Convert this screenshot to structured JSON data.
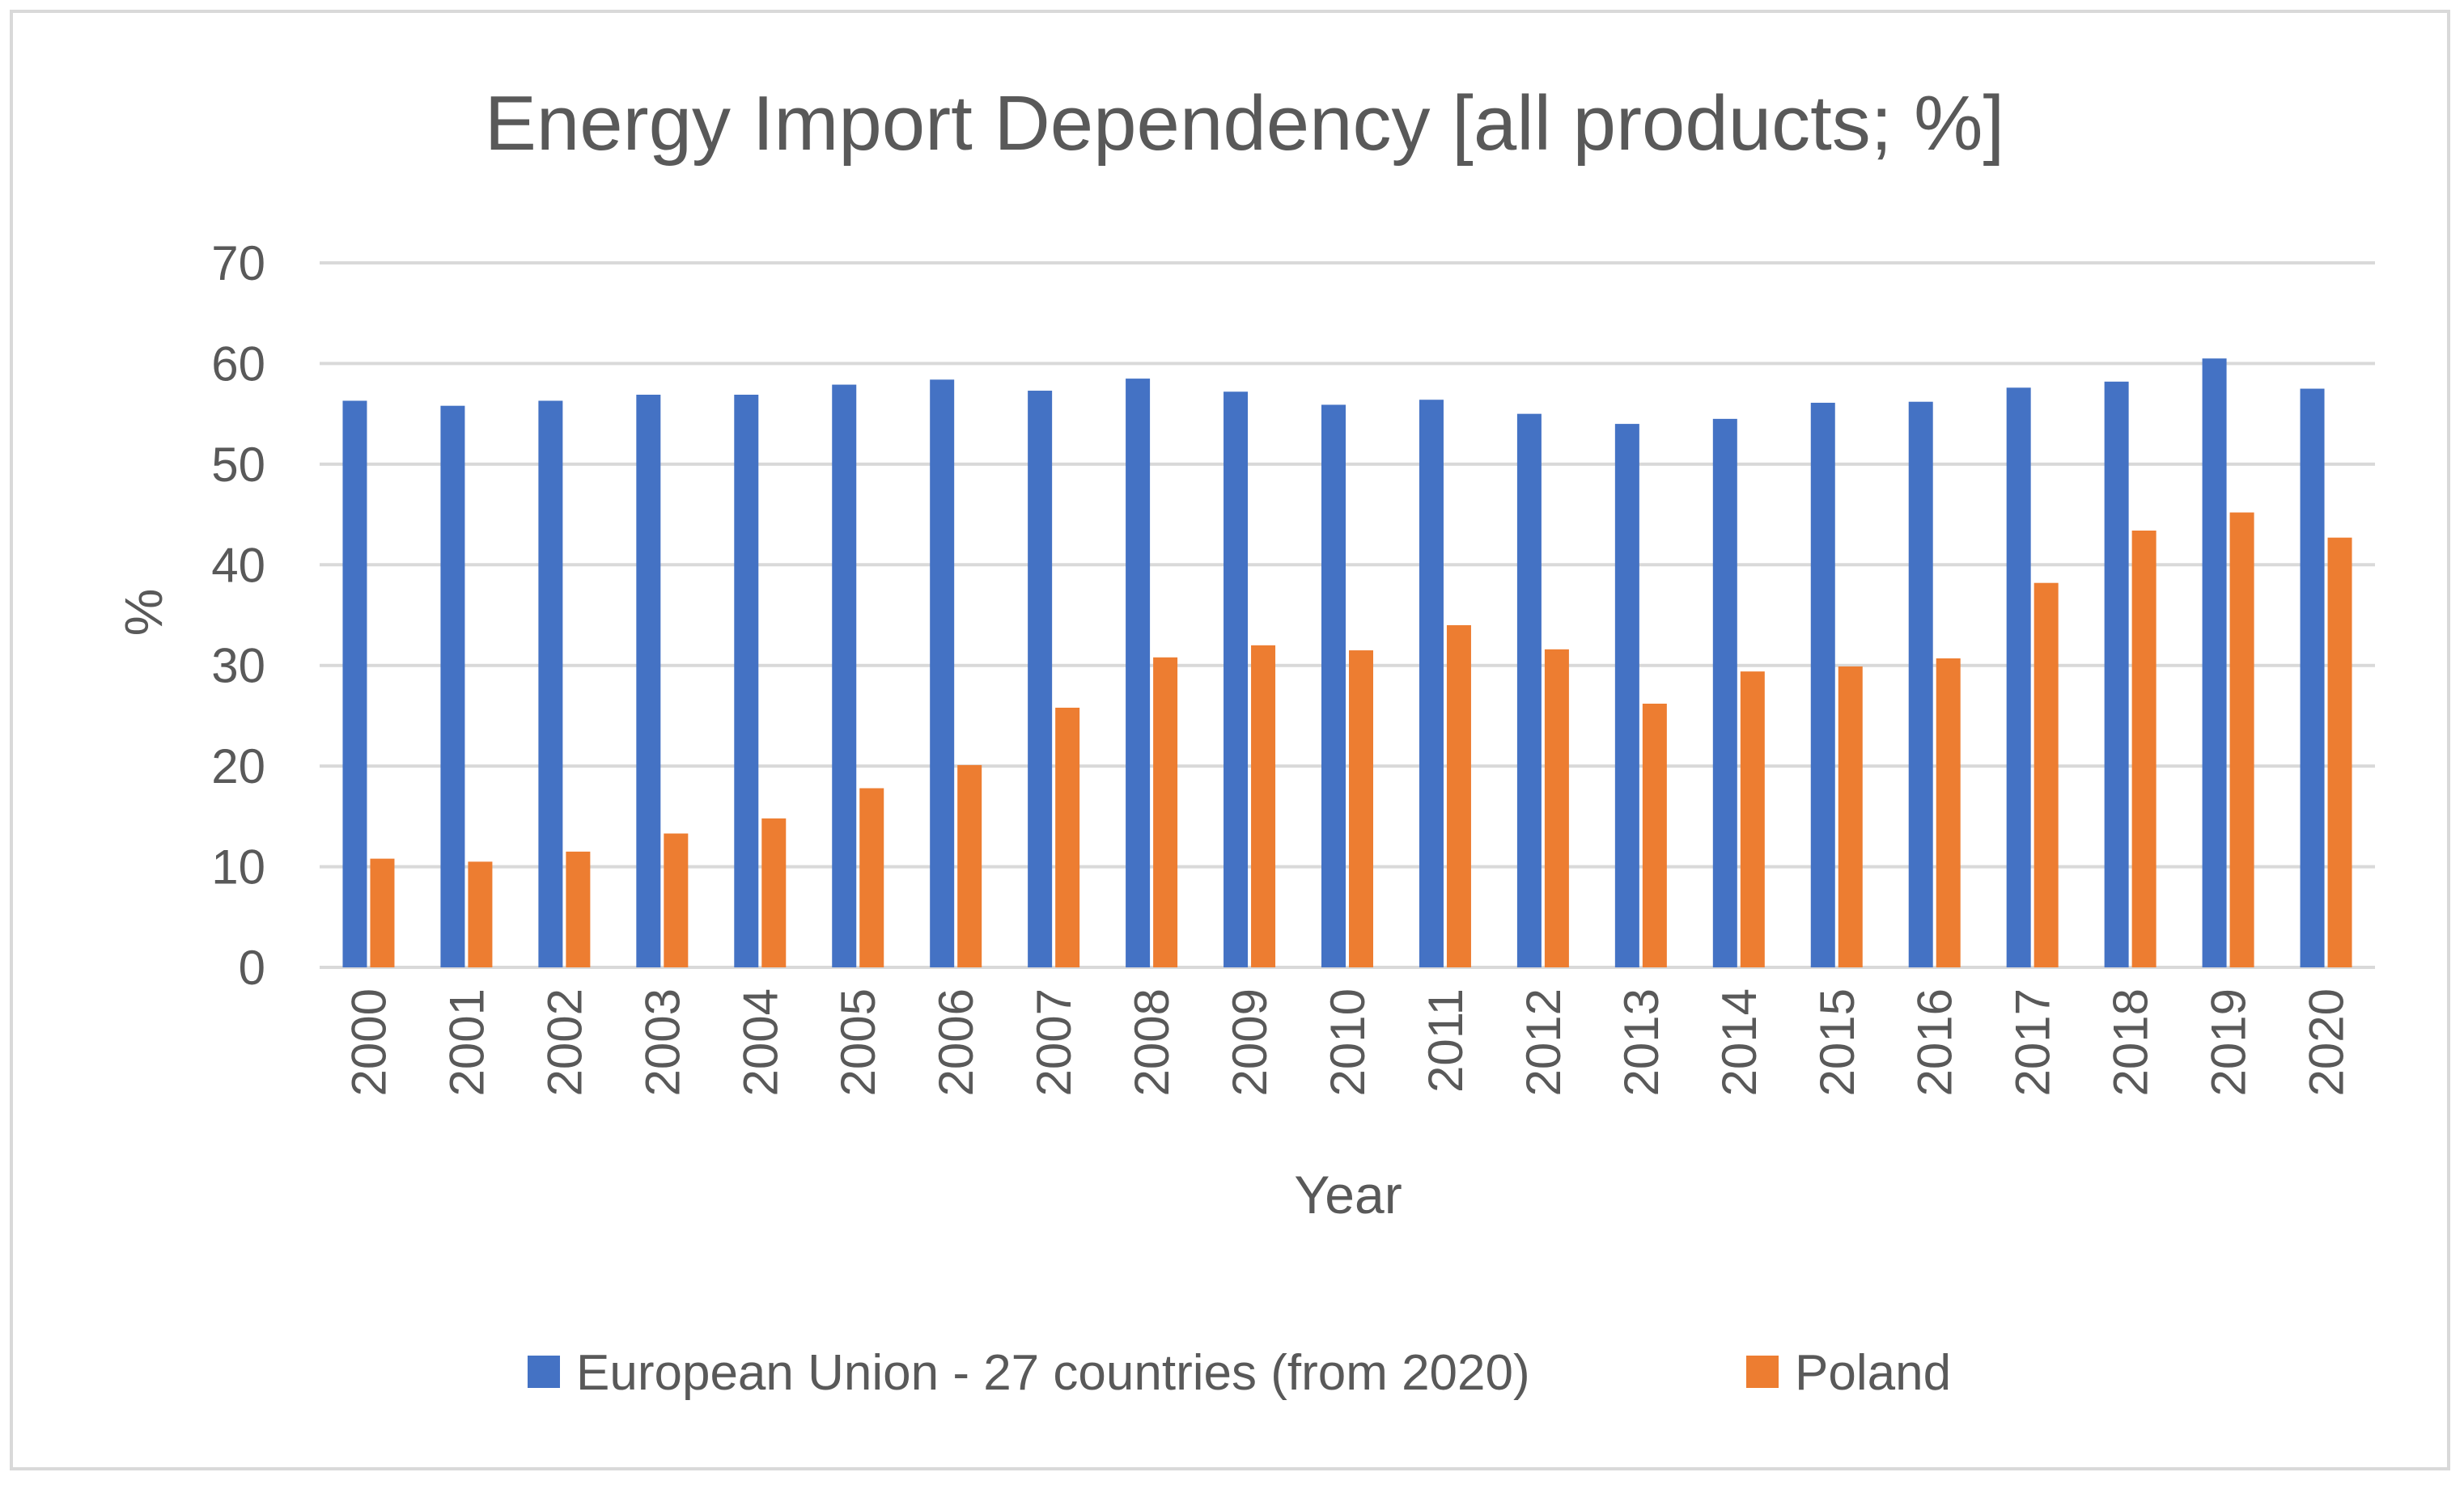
{
  "chart_data": {
    "type": "bar",
    "title": "Energy Import Dependency [all products; %]",
    "xlabel": "Year",
    "ylabel": "%",
    "ylim": [
      0,
      70
    ],
    "yticks": [
      0,
      10,
      20,
      30,
      40,
      50,
      60,
      70
    ],
    "grid": true,
    "legend_position": "bottom",
    "categories": [
      "2000",
      "2001",
      "2002",
      "2003",
      "2004",
      "2005",
      "2006",
      "2007",
      "2008",
      "2009",
      "2010",
      "2011",
      "2012",
      "2013",
      "2014",
      "2015",
      "2016",
      "2017",
      "2018",
      "2019",
      "2020"
    ],
    "series": [
      {
        "name": "European Union - 27 countries (from 2020)",
        "color": "#4472c4",
        "values": [
          56.3,
          55.8,
          56.3,
          56.9,
          56.9,
          57.9,
          58.4,
          57.3,
          58.5,
          57.2,
          55.9,
          56.4,
          55.0,
          54.0,
          54.5,
          56.1,
          56.2,
          57.6,
          58.2,
          60.5,
          57.5
        ]
      },
      {
        "name": "Poland",
        "color": "#ed7d31",
        "values": [
          10.8,
          10.5,
          11.5,
          13.3,
          14.8,
          17.8,
          20.1,
          25.8,
          30.8,
          32.0,
          31.5,
          34.0,
          31.6,
          26.2,
          29.4,
          29.9,
          30.7,
          38.2,
          43.4,
          45.2,
          42.7
        ]
      }
    ]
  }
}
